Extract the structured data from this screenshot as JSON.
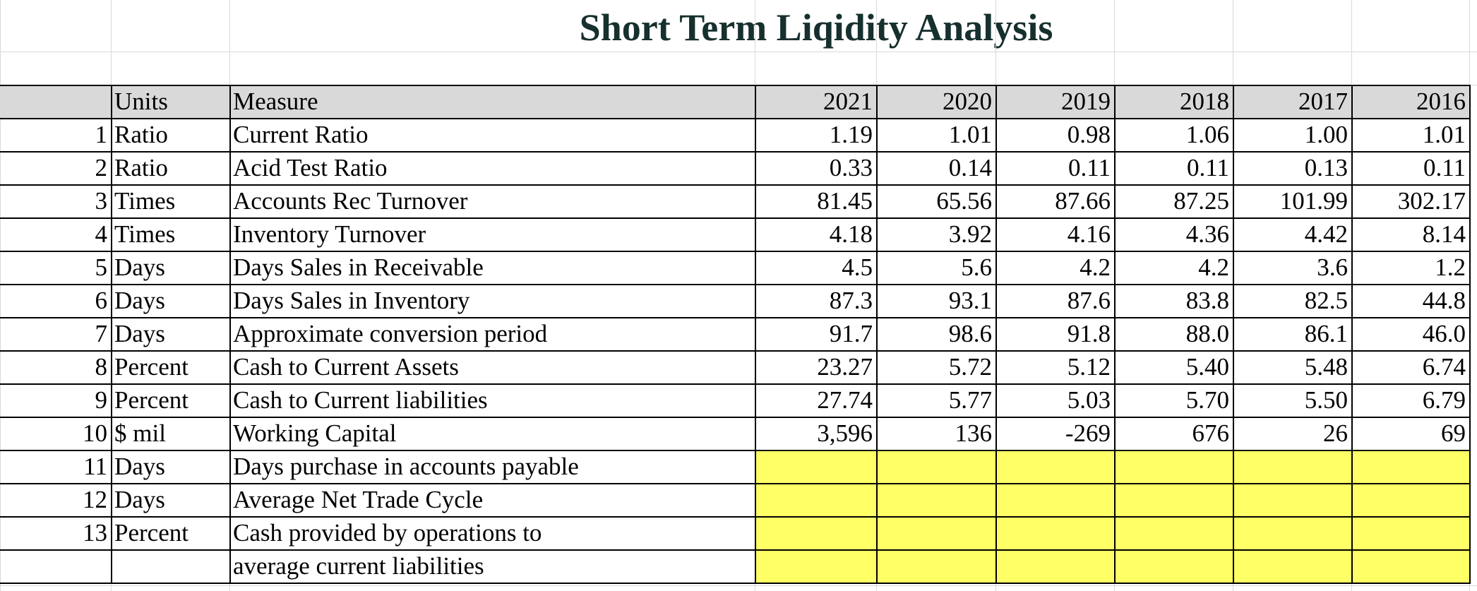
{
  "header": {
    "title": "Short Term Liqidity Analysis"
  },
  "table": {
    "columns": {
      "units": "Units",
      "measure": "Measure",
      "years": [
        "2021",
        "2020",
        "2019",
        "2018",
        "2017",
        "2016"
      ]
    },
    "rows": [
      {
        "number": "1",
        "units": "Ratio",
        "measure": "Current Ratio",
        "values": [
          "1.19",
          "1.01",
          "0.98",
          "1.06",
          "1.00",
          "1.01"
        ]
      },
      {
        "number": "2",
        "units": "Ratio",
        "measure": "Acid Test Ratio",
        "values": [
          "0.33",
          "0.14",
          "0.11",
          "0.11",
          "0.13",
          "0.11"
        ]
      },
      {
        "number": "3",
        "units": "Times",
        "measure": "Accounts Rec Turnover",
        "values": [
          "81.45",
          "65.56",
          "87.66",
          "87.25",
          "101.99",
          "302.17"
        ]
      },
      {
        "number": "4",
        "units": "Times",
        "measure": "Inventory Turnover",
        "values": [
          "4.18",
          "3.92",
          "4.16",
          "4.36",
          "4.42",
          "8.14"
        ]
      },
      {
        "number": "5",
        "units": "Days",
        "measure": "Days Sales in Receivable",
        "values": [
          "4.5",
          "5.6",
          "4.2",
          "4.2",
          "3.6",
          "1.2"
        ]
      },
      {
        "number": "6",
        "units": "Days",
        "measure": "Days Sales in Inventory",
        "values": [
          "87.3",
          "93.1",
          "87.6",
          "83.8",
          "82.5",
          "44.8"
        ]
      },
      {
        "number": "7",
        "units": "Days",
        "measure": "Approximate conversion period",
        "values": [
          "91.7",
          "98.6",
          "91.8",
          "88.0",
          "86.1",
          "46.0"
        ]
      },
      {
        "number": "8",
        "units": "Percent",
        "measure": "Cash to Current Assets",
        "values": [
          "23.27",
          "5.72",
          "5.12",
          "5.40",
          "5.48",
          "6.74"
        ]
      },
      {
        "number": "9",
        "units": "Percent",
        "measure": "Cash to Current liabilities",
        "values": [
          "27.74",
          "5.77",
          "5.03",
          "5.70",
          "5.50",
          "6.79"
        ]
      },
      {
        "number": "10",
        "units": "$ mil",
        "measure": "Working Capital",
        "values": [
          "3,596",
          "136",
          "-269",
          "676",
          "26",
          "69"
        ]
      },
      {
        "number": "11",
        "units": "Days",
        "measure": "Days purchase in accounts payable"
      },
      {
        "number": "12",
        "units": "Days",
        "measure": "Average Net Trade Cycle"
      },
      {
        "number": "13",
        "units": "Percent",
        "measure": "Cash provided by operations to",
        "continuation": "average current liabilities"
      }
    ]
  }
}
